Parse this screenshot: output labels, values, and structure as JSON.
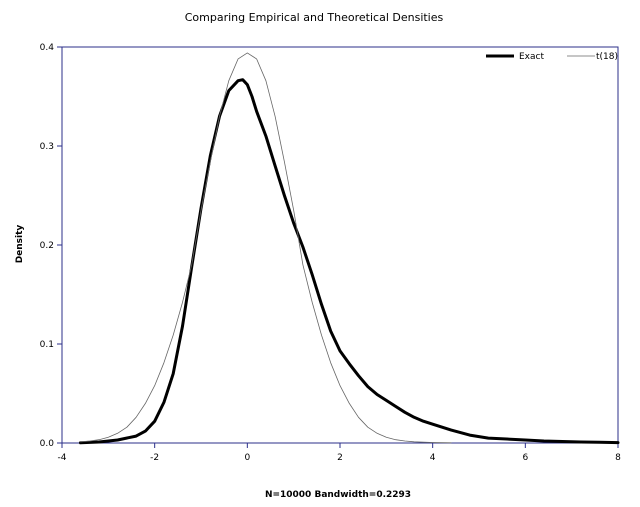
{
  "chart_data": {
    "type": "line",
    "title": "Comparing Empirical and Theoretical Densities",
    "xlabel": "N=10000 Bandwidth=0.2293",
    "ylabel": "Density",
    "xlim": [
      -4,
      8
    ],
    "ylim": [
      0,
      0.4
    ],
    "x_ticks": [
      "-4",
      "-2",
      "0",
      "2",
      "4",
      "6",
      "8"
    ],
    "y_ticks": [
      "0.0",
      "0.1",
      "0.2",
      "0.3",
      "0.4"
    ],
    "legend_position": "top-right",
    "grid": false,
    "series": [
      {
        "name": "Exact",
        "color": "#000000",
        "style": "thick",
        "x": [
          -3.6,
          -3.2,
          -2.8,
          -2.4,
          -2.2,
          -2.0,
          -1.8,
          -1.6,
          -1.4,
          -1.2,
          -1.0,
          -0.8,
          -0.6,
          -0.4,
          -0.2,
          -0.1,
          0.0,
          0.1,
          0.2,
          0.4,
          0.6,
          0.8,
          1.0,
          1.2,
          1.4,
          1.6,
          1.8,
          2.0,
          2.2,
          2.4,
          2.6,
          2.8,
          3.0,
          3.2,
          3.4,
          3.6,
          3.8,
          4.0,
          4.4,
          4.8,
          5.2,
          5.6,
          6.0,
          6.4,
          6.8,
          7.2,
          7.6,
          8.0
        ],
        "y": [
          0.0002,
          0.001,
          0.003,
          0.007,
          0.012,
          0.022,
          0.041,
          0.07,
          0.118,
          0.178,
          0.237,
          0.29,
          0.33,
          0.356,
          0.366,
          0.367,
          0.362,
          0.35,
          0.335,
          0.31,
          0.28,
          0.25,
          0.222,
          0.198,
          0.17,
          0.14,
          0.113,
          0.093,
          0.08,
          0.068,
          0.057,
          0.049,
          0.043,
          0.037,
          0.031,
          0.026,
          0.022,
          0.019,
          0.013,
          0.008,
          0.005,
          0.004,
          0.003,
          0.002,
          0.0015,
          0.001,
          0.0007,
          0.0004
        ]
      },
      {
        "name": "t(18)",
        "color": "#666666",
        "style": "thin",
        "x": [
          -3.6,
          -3.4,
          -3.2,
          -3.0,
          -2.8,
          -2.6,
          -2.4,
          -2.2,
          -2.0,
          -1.8,
          -1.6,
          -1.4,
          -1.2,
          -1.0,
          -0.8,
          -0.6,
          -0.4,
          -0.2,
          0.0,
          0.2,
          0.4,
          0.6,
          0.8,
          1.0,
          1.2,
          1.4,
          1.6,
          1.8,
          2.0,
          2.2,
          2.4,
          2.6,
          2.8,
          3.0,
          3.2,
          3.4,
          3.6,
          3.8,
          4.0,
          4.2,
          4.4
        ],
        "y": [
          0.0012,
          0.002,
          0.0033,
          0.0058,
          0.0098,
          0.016,
          0.026,
          0.04,
          0.058,
          0.081,
          0.109,
          0.142,
          0.18,
          0.235,
          0.284,
          0.33,
          0.366,
          0.388,
          0.394,
          0.388,
          0.366,
          0.33,
          0.284,
          0.235,
          0.18,
          0.142,
          0.109,
          0.081,
          0.058,
          0.04,
          0.026,
          0.016,
          0.0098,
          0.0058,
          0.0033,
          0.002,
          0.0012,
          0.0008,
          0.0005,
          0.0003,
          0.0002
        ]
      }
    ]
  }
}
